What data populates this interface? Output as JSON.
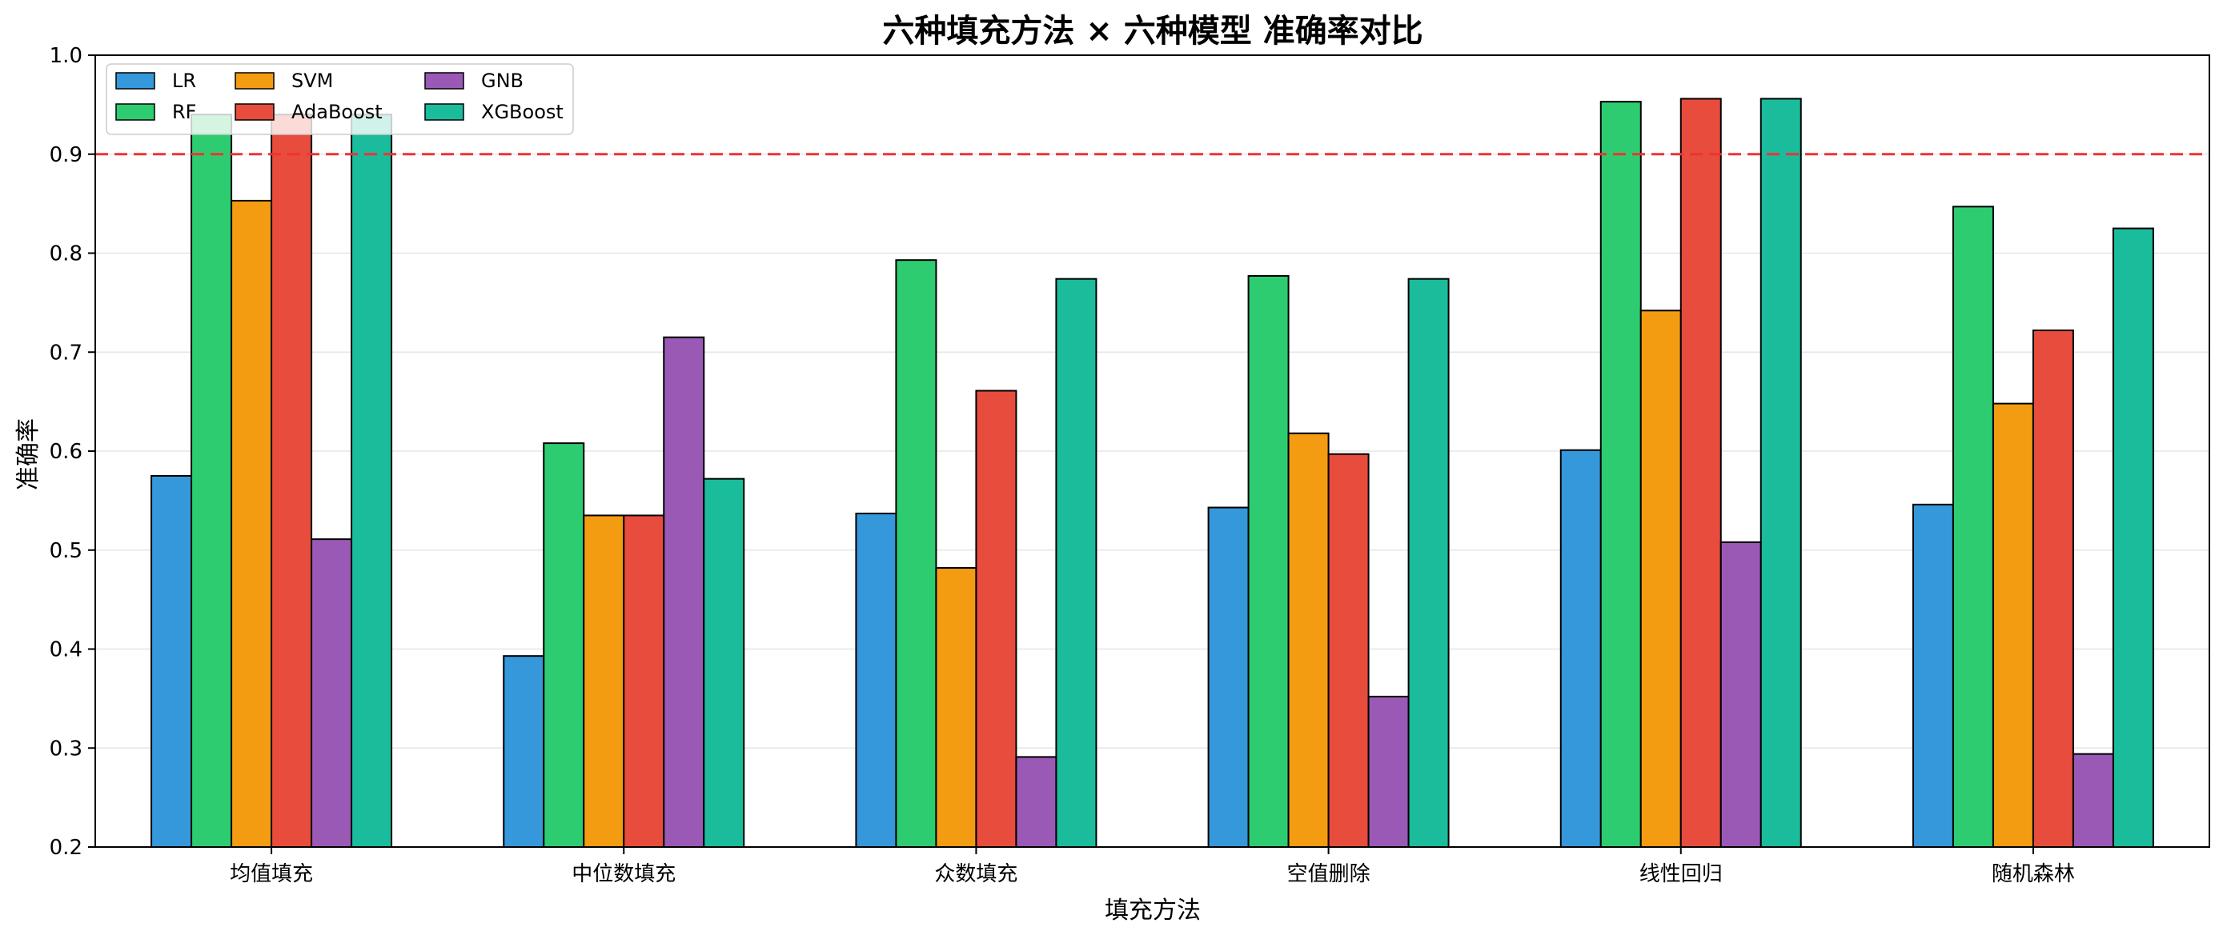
{
  "chart_data": {
    "type": "bar",
    "title": "六种填充方法 × 六种模型 准确率对比",
    "xlabel": "填充方法",
    "ylabel": "准确率",
    "ylim": [
      0.2,
      1.0
    ],
    "yticks": [
      "0.2",
      "0.3",
      "0.4",
      "0.5",
      "0.6",
      "0.7",
      "0.8",
      "0.9",
      "1.0"
    ],
    "grid": true,
    "legend_position": "top-left",
    "reference_line": {
      "y": 0.9,
      "style": "dashed",
      "color": "#ee3333"
    },
    "categories": [
      "均值填充",
      "中位数填充",
      "众数填充",
      "空值删除",
      "线性回归",
      "随机森林"
    ],
    "series": [
      {
        "name": "LR",
        "color": "#3598db",
        "values": [
          0.575,
          0.393,
          0.537,
          0.543,
          0.601,
          0.546
        ]
      },
      {
        "name": "RF",
        "color": "#2ecc71",
        "values": [
          0.94,
          0.608,
          0.793,
          0.777,
          0.953,
          0.847
        ]
      },
      {
        "name": "SVM",
        "color": "#f39c12",
        "values": [
          0.853,
          0.535,
          0.482,
          0.618,
          0.742,
          0.648
        ]
      },
      {
        "name": "AdaBoost",
        "color": "#e74c3c",
        "values": [
          0.94,
          0.535,
          0.661,
          0.597,
          0.956,
          0.722
        ]
      },
      {
        "name": "GNB",
        "color": "#9b59b6",
        "values": [
          0.511,
          0.715,
          0.291,
          0.352,
          0.508,
          0.294
        ]
      },
      {
        "name": "XGBoost",
        "color": "#1abc9c",
        "values": [
          0.94,
          0.572,
          0.774,
          0.774,
          0.956,
          0.825
        ]
      }
    ]
  }
}
